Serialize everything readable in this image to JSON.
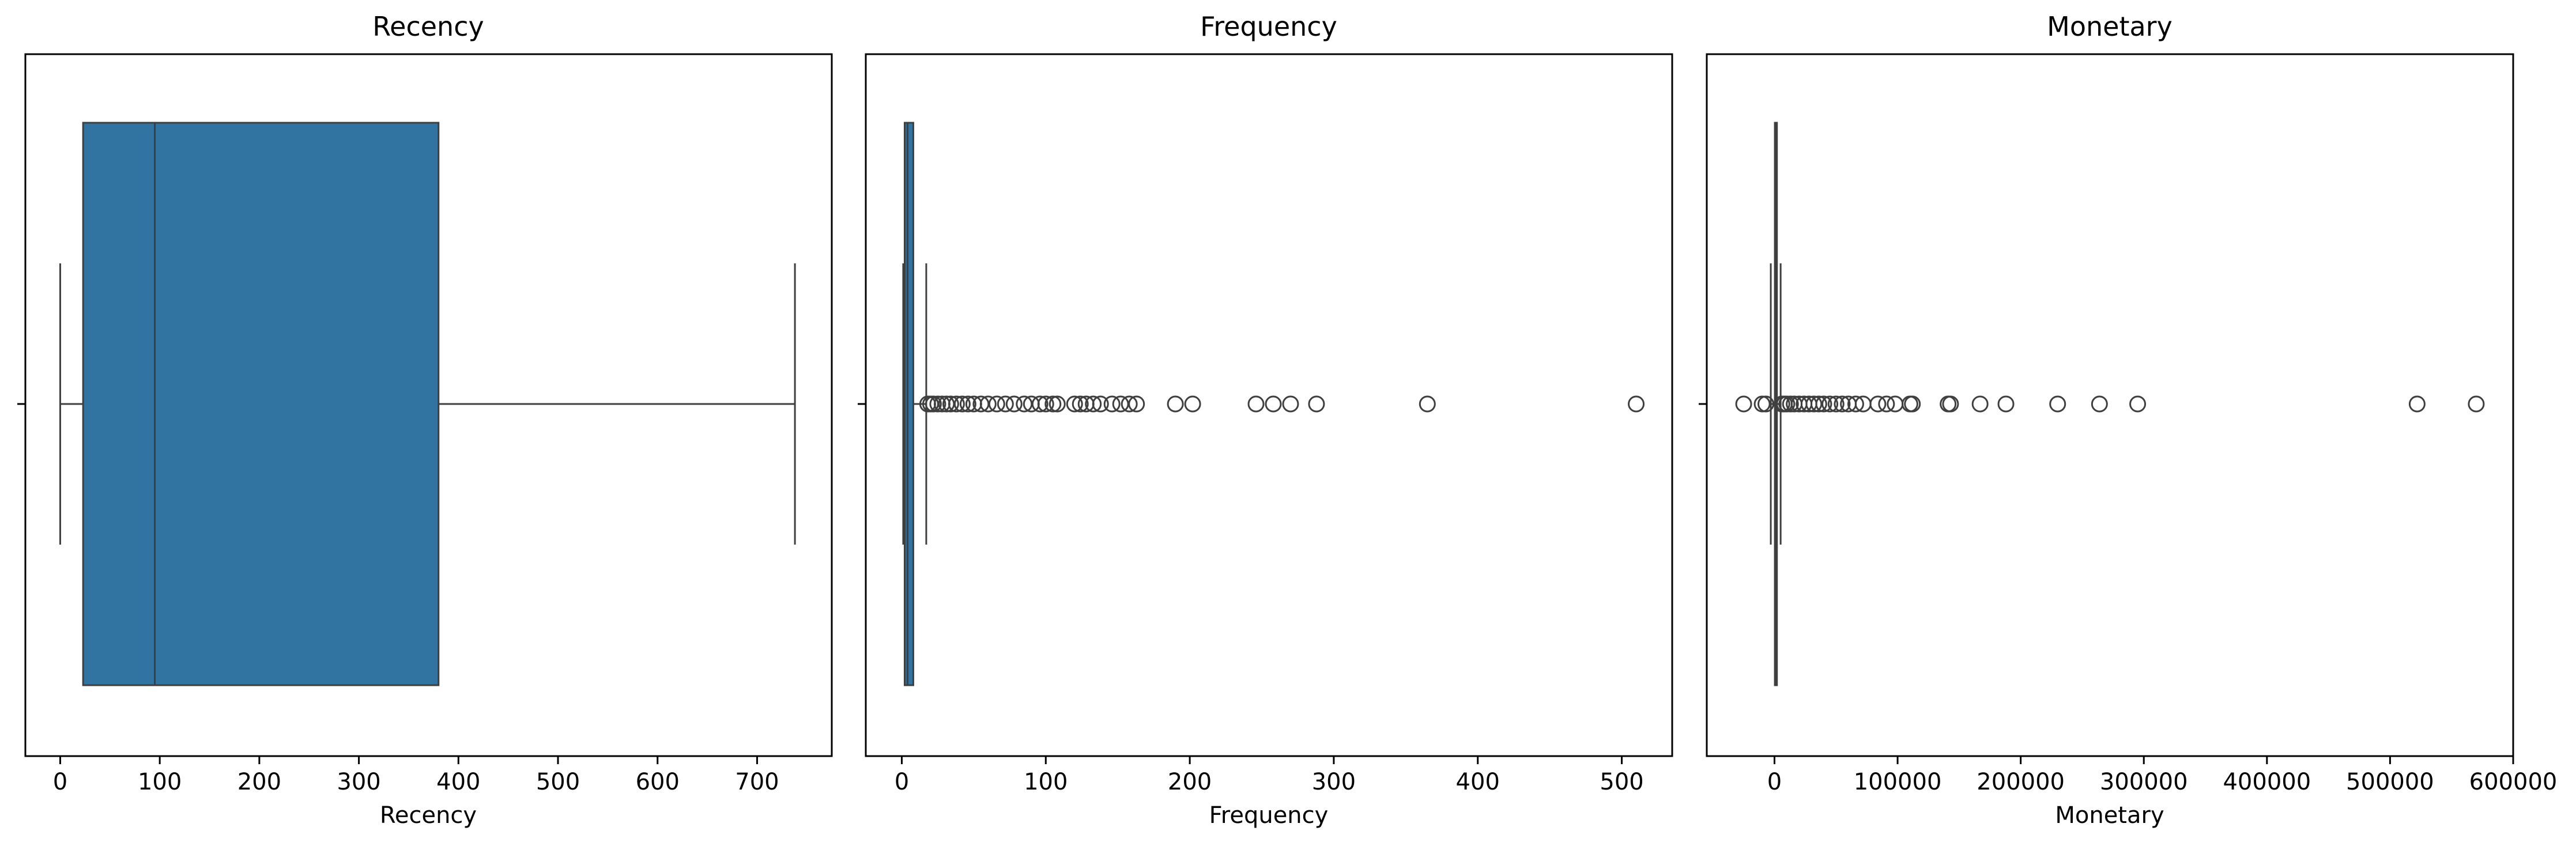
{
  "chart_data": [
    {
      "type": "box",
      "title": "Recency",
      "xlabel": "Recency",
      "xlim": [
        -35,
        775
      ],
      "xticks": [
        0,
        100,
        200,
        300,
        400,
        500,
        600,
        700
      ],
      "box": {
        "whisker_low": 0,
        "q1": 23,
        "median": 95,
        "q3": 380,
        "whisker_high": 738
      },
      "outliers": []
    },
    {
      "type": "box",
      "title": "Frequency",
      "xlabel": "Frequency",
      "xlim": [
        -25,
        535
      ],
      "xticks": [
        0,
        100,
        200,
        300,
        400,
        500
      ],
      "box": {
        "whisker_low": 1,
        "q1": 2,
        "median": 4,
        "q3": 8,
        "whisker_high": 17
      },
      "outliers": [
        18,
        20,
        22,
        25,
        28,
        31,
        34,
        38,
        42,
        46,
        50,
        55,
        60,
        66,
        72,
        78,
        85,
        90,
        96,
        100,
        105,
        108,
        120,
        124,
        128,
        133,
        138,
        146,
        152,
        158,
        163,
        190,
        202,
        246,
        258,
        270,
        288,
        365,
        510
      ]
    },
    {
      "type": "box",
      "title": "Monetary",
      "xlabel": "Monetary",
      "xlim": [
        -55000,
        600000
      ],
      "xticks": [
        0,
        100000,
        200000,
        300000,
        400000,
        500000,
        600000
      ],
      "box": {
        "whisker_low": -3000,
        "q1": 300,
        "median": 700,
        "q3": 2000,
        "whisker_high": 5000
      },
      "outliers": [
        -25000,
        -10000,
        -7000,
        6000,
        8000,
        10000,
        13000,
        16000,
        20000,
        24000,
        28000,
        32000,
        36000,
        40000,
        45000,
        50000,
        55000,
        60000,
        66000,
        72000,
        84000,
        91000,
        98000,
        110000,
        112000,
        141000,
        143000,
        167000,
        188000,
        230000,
        264000,
        295000,
        522000,
        570000
      ]
    }
  ],
  "colors": {
    "box_fill": "#3274a1",
    "line": "#3f3f3f",
    "axes": "#000000",
    "background": "#ffffff"
  }
}
